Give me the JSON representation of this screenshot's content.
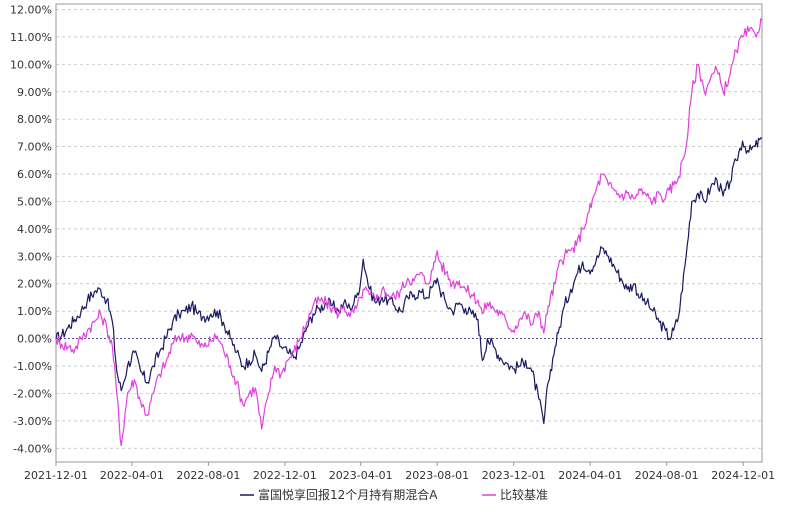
{
  "chart_data": {
    "type": "line",
    "title": "",
    "xlabel": "",
    "ylabel": "",
    "x_ticks": [
      "2021-12-01",
      "2022-04-01",
      "2022-08-01",
      "2022-12-01",
      "2023-04-01",
      "2023-08-01",
      "2023-12-01",
      "2024-04-01",
      "2024-08-01",
      "2024-12-01"
    ],
    "y_ticks": [
      "-4.00%",
      "-3.00%",
      "-2.00%",
      "-1.00%",
      "0.00%",
      "1.00%",
      "2.00%",
      "3.00%",
      "4.00%",
      "5.00%",
      "6.00%",
      "7.00%",
      "8.00%",
      "9.00%",
      "10.00%",
      "11.00%",
      "12.00%"
    ],
    "ylim": [
      -4.5,
      12.2
    ],
    "xlim": [
      "2021-12-01",
      "2024-12-31"
    ],
    "grid": true,
    "zero_line": true,
    "legend_position": "bottom-center",
    "series": [
      {
        "name": "富国悦享回报12个月持有期混合A",
        "color": "#1a1a5e",
        "points": [
          [
            "2021-12-01",
            0.0
          ],
          [
            "2021-12-10",
            0.1
          ],
          [
            "2021-12-20",
            0.4
          ],
          [
            "2021-12-31",
            0.7
          ],
          [
            "2022-01-10",
            1.0
          ],
          [
            "2022-01-20",
            1.4
          ],
          [
            "2022-01-31",
            1.7
          ],
          [
            "2022-02-10",
            1.8
          ],
          [
            "2022-02-20",
            1.4
          ],
          [
            "2022-03-01",
            0.6
          ],
          [
            "2022-03-08",
            -1.2
          ],
          [
            "2022-03-15",
            -1.9
          ],
          [
            "2022-03-25",
            -1.0
          ],
          [
            "2022-04-05",
            -0.5
          ],
          [
            "2022-04-15",
            -1.2
          ],
          [
            "2022-04-26",
            -1.6
          ],
          [
            "2022-05-05",
            -1.0
          ],
          [
            "2022-05-15",
            -0.5
          ],
          [
            "2022-05-25",
            0.0
          ],
          [
            "2022-06-05",
            0.6
          ],
          [
            "2022-06-15",
            0.9
          ],
          [
            "2022-06-25",
            1.0
          ],
          [
            "2022-07-05",
            1.2
          ],
          [
            "2022-07-15",
            0.9
          ],
          [
            "2022-07-25",
            0.8
          ],
          [
            "2022-08-05",
            0.9
          ],
          [
            "2022-08-15",
            1.0
          ],
          [
            "2022-08-25",
            0.6
          ],
          [
            "2022-09-05",
            0.0
          ],
          [
            "2022-09-15",
            -0.5
          ],
          [
            "2022-09-25",
            -1.0
          ],
          [
            "2022-10-05",
            -0.8
          ],
          [
            "2022-10-15",
            -0.6
          ],
          [
            "2022-10-25",
            -1.2
          ],
          [
            "2022-11-05",
            -0.5
          ],
          [
            "2022-11-15",
            0.1
          ],
          [
            "2022-11-25",
            -0.3
          ],
          [
            "2022-12-05",
            -0.5
          ],
          [
            "2022-12-15",
            -0.7
          ],
          [
            "2022-12-25",
            -0.3
          ],
          [
            "2023-01-05",
            0.4
          ],
          [
            "2023-01-15",
            0.9
          ],
          [
            "2023-01-25",
            1.1
          ],
          [
            "2023-02-05",
            1.3
          ],
          [
            "2023-02-15",
            1.2
          ],
          [
            "2023-02-25",
            1.0
          ],
          [
            "2023-03-05",
            1.3
          ],
          [
            "2023-03-15",
            1.1
          ],
          [
            "2023-03-25",
            1.5
          ],
          [
            "2023-04-01",
            2.1
          ],
          [
            "2023-04-05",
            2.9
          ],
          [
            "2023-04-15",
            1.8
          ],
          [
            "2023-04-25",
            1.3
          ],
          [
            "2023-05-05",
            1.5
          ],
          [
            "2023-05-15",
            1.4
          ],
          [
            "2023-05-25",
            1.2
          ],
          [
            "2023-06-05",
            1.0
          ],
          [
            "2023-06-15",
            1.5
          ],
          [
            "2023-06-25",
            1.6
          ],
          [
            "2023-07-05",
            1.7
          ],
          [
            "2023-07-15",
            1.5
          ],
          [
            "2023-07-25",
            1.9
          ],
          [
            "2023-08-01",
            2.2
          ],
          [
            "2023-08-05",
            1.8
          ],
          [
            "2023-08-15",
            1.3
          ],
          [
            "2023-08-25",
            1.0
          ],
          [
            "2023-09-05",
            1.3
          ],
          [
            "2023-09-15",
            1.1
          ],
          [
            "2023-09-25",
            0.9
          ],
          [
            "2023-10-05",
            0.7
          ],
          [
            "2023-10-12",
            -0.8
          ],
          [
            "2023-10-20",
            0.0
          ],
          [
            "2023-10-30",
            -0.3
          ],
          [
            "2023-11-10",
            -0.7
          ],
          [
            "2023-11-20",
            -0.9
          ],
          [
            "2023-11-30",
            -1.1
          ],
          [
            "2023-12-10",
            -1.0
          ],
          [
            "2023-12-20",
            -0.8
          ],
          [
            "2023-12-30",
            -1.2
          ],
          [
            "2024-01-10",
            -2.2
          ],
          [
            "2024-01-18",
            -3.1
          ],
          [
            "2024-01-25",
            -1.6
          ],
          [
            "2024-02-05",
            -0.3
          ],
          [
            "2024-02-10",
            0.2
          ],
          [
            "2024-02-20",
            1.2
          ],
          [
            "2024-03-01",
            1.8
          ],
          [
            "2024-03-10",
            2.3
          ],
          [
            "2024-03-20",
            2.8
          ],
          [
            "2024-03-30",
            2.5
          ],
          [
            "2024-04-10",
            2.8
          ],
          [
            "2024-04-20",
            3.3
          ],
          [
            "2024-04-30",
            3.0
          ],
          [
            "2024-05-10",
            2.6
          ],
          [
            "2024-05-20",
            2.2
          ],
          [
            "2024-05-30",
            1.8
          ],
          [
            "2024-06-10",
            2.0
          ],
          [
            "2024-06-20",
            1.5
          ],
          [
            "2024-06-30",
            1.3
          ],
          [
            "2024-07-10",
            1.0
          ],
          [
            "2024-07-20",
            0.6
          ],
          [
            "2024-07-30",
            0.3
          ],
          [
            "2024-08-05",
            0.0
          ],
          [
            "2024-08-12",
            0.3
          ],
          [
            "2024-08-20",
            0.8
          ],
          [
            "2024-09-01",
            3.0
          ],
          [
            "2024-09-10",
            5.0
          ],
          [
            "2024-09-20",
            5.3
          ],
          [
            "2024-09-30",
            5.0
          ],
          [
            "2024-10-10",
            5.5
          ],
          [
            "2024-10-20",
            5.8
          ],
          [
            "2024-10-30",
            5.2
          ],
          [
            "2024-11-10",
            5.7
          ],
          [
            "2024-11-20",
            6.5
          ],
          [
            "2024-11-30",
            7.2
          ],
          [
            "2024-12-10",
            6.8
          ],
          [
            "2024-12-20",
            7.0
          ],
          [
            "2024-12-31",
            7.3
          ]
        ]
      },
      {
        "name": "比较基准",
        "color": "#e040e0",
        "points": [
          [
            "2021-12-01",
            0.0
          ],
          [
            "2021-12-10",
            -0.2
          ],
          [
            "2021-12-20",
            -0.3
          ],
          [
            "2021-12-31",
            -0.4
          ],
          [
            "2022-01-10",
            0.0
          ],
          [
            "2022-01-20",
            0.3
          ],
          [
            "2022-01-31",
            0.6
          ],
          [
            "2022-02-10",
            0.9
          ],
          [
            "2022-02-20",
            0.4
          ],
          [
            "2022-03-01",
            -0.3
          ],
          [
            "2022-03-08",
            -2.0
          ],
          [
            "2022-03-15",
            -3.9
          ],
          [
            "2022-03-25",
            -2.0
          ],
          [
            "2022-04-05",
            -1.5
          ],
          [
            "2022-04-15",
            -2.3
          ],
          [
            "2022-04-26",
            -2.8
          ],
          [
            "2022-05-05",
            -2.0
          ],
          [
            "2022-05-15",
            -1.3
          ],
          [
            "2022-05-25",
            -0.9
          ],
          [
            "2022-06-05",
            -0.2
          ],
          [
            "2022-06-15",
            0.1
          ],
          [
            "2022-06-25",
            0.0
          ],
          [
            "2022-07-05",
            0.2
          ],
          [
            "2022-07-15",
            -0.2
          ],
          [
            "2022-07-25",
            -0.3
          ],
          [
            "2022-08-05",
            -0.1
          ],
          [
            "2022-08-15",
            0.1
          ],
          [
            "2022-08-25",
            -0.4
          ],
          [
            "2022-09-05",
            -1.0
          ],
          [
            "2022-09-15",
            -1.6
          ],
          [
            "2022-09-25",
            -2.4
          ],
          [
            "2022-10-05",
            -2.0
          ],
          [
            "2022-10-15",
            -1.8
          ],
          [
            "2022-10-25",
            -3.3
          ],
          [
            "2022-11-05",
            -2.0
          ],
          [
            "2022-11-15",
            -1.0
          ],
          [
            "2022-11-25",
            -1.3
          ],
          [
            "2022-12-05",
            -0.8
          ],
          [
            "2022-12-15",
            -0.5
          ],
          [
            "2022-12-25",
            0.0
          ],
          [
            "2023-01-05",
            0.6
          ],
          [
            "2023-01-15",
            1.2
          ],
          [
            "2023-01-25",
            1.4
          ],
          [
            "2023-02-05",
            1.3
          ],
          [
            "2023-02-15",
            1.1
          ],
          [
            "2023-02-25",
            0.9
          ],
          [
            "2023-03-05",
            1.2
          ],
          [
            "2023-03-15",
            0.8
          ],
          [
            "2023-03-25",
            1.1
          ],
          [
            "2023-04-01",
            1.5
          ],
          [
            "2023-04-05",
            1.8
          ],
          [
            "2023-04-15",
            1.6
          ],
          [
            "2023-04-25",
            1.4
          ],
          [
            "2023-05-05",
            1.8
          ],
          [
            "2023-05-15",
            1.6
          ],
          [
            "2023-05-25",
            1.5
          ],
          [
            "2023-06-05",
            1.8
          ],
          [
            "2023-06-15",
            2.2
          ],
          [
            "2023-06-25",
            2.1
          ],
          [
            "2023-07-05",
            2.4
          ],
          [
            "2023-07-15",
            2.0
          ],
          [
            "2023-07-25",
            2.5
          ],
          [
            "2023-08-01",
            3.2
          ],
          [
            "2023-08-05",
            2.8
          ],
          [
            "2023-08-15",
            2.4
          ],
          [
            "2023-08-25",
            2.0
          ],
          [
            "2023-09-05",
            2.1
          ],
          [
            "2023-09-15",
            1.8
          ],
          [
            "2023-09-25",
            1.6
          ],
          [
            "2023-10-05",
            1.4
          ],
          [
            "2023-10-12",
            0.9
          ],
          [
            "2023-10-20",
            1.3
          ],
          [
            "2023-10-30",
            1.1
          ],
          [
            "2023-11-10",
            0.9
          ],
          [
            "2023-11-20",
            0.6
          ],
          [
            "2023-11-30",
            0.3
          ],
          [
            "2023-12-10",
            0.7
          ],
          [
            "2023-12-20",
            0.9
          ],
          [
            "2023-12-30",
            0.5
          ],
          [
            "2024-01-10",
            1.0
          ],
          [
            "2024-01-18",
            0.2
          ],
          [
            "2024-01-25",
            1.2
          ],
          [
            "2024-02-05",
            2.0
          ],
          [
            "2024-02-10",
            2.6
          ],
          [
            "2024-02-20",
            3.0
          ],
          [
            "2024-03-01",
            3.2
          ],
          [
            "2024-03-10",
            3.4
          ],
          [
            "2024-03-20",
            4.0
          ],
          [
            "2024-03-30",
            4.6
          ],
          [
            "2024-04-10",
            5.4
          ],
          [
            "2024-04-20",
            6.0
          ],
          [
            "2024-04-30",
            5.6
          ],
          [
            "2024-05-10",
            5.4
          ],
          [
            "2024-05-20",
            5.2
          ],
          [
            "2024-05-30",
            5.3
          ],
          [
            "2024-06-10",
            5.1
          ],
          [
            "2024-06-20",
            5.4
          ],
          [
            "2024-06-30",
            5.2
          ],
          [
            "2024-07-10",
            5.0
          ],
          [
            "2024-07-20",
            5.3
          ],
          [
            "2024-07-30",
            5.1
          ],
          [
            "2024-08-05",
            5.4
          ],
          [
            "2024-08-12",
            5.6
          ],
          [
            "2024-08-20",
            5.9
          ],
          [
            "2024-09-01",
            7.0
          ],
          [
            "2024-09-10",
            9.0
          ],
          [
            "2024-09-20",
            10.0
          ],
          [
            "2024-09-30",
            9.0
          ],
          [
            "2024-10-10",
            9.5
          ],
          [
            "2024-10-20",
            9.8
          ],
          [
            "2024-10-30",
            9.0
          ],
          [
            "2024-11-10",
            9.6
          ],
          [
            "2024-11-20",
            10.5
          ],
          [
            "2024-11-30",
            11.0
          ],
          [
            "2024-12-10",
            11.2
          ],
          [
            "2024-12-20",
            11.1
          ],
          [
            "2024-12-31",
            11.6
          ]
        ]
      }
    ]
  }
}
